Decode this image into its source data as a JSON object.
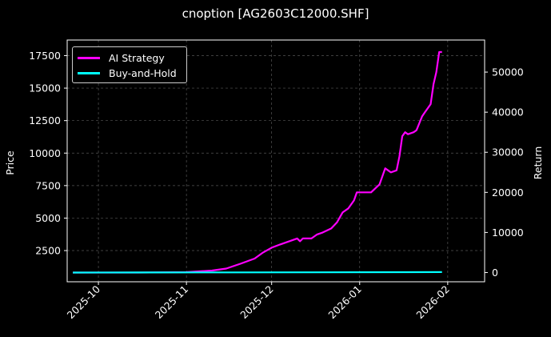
{
  "chart_data": {
    "type": "line",
    "title": "cnoption [AG2603C12000.SHF]",
    "ylabel_left": "Price",
    "ylabel_right": "Return",
    "ylim_left": [
      100,
      18700
    ],
    "ylim_right": [
      -2300,
      58000
    ],
    "xlim": [
      "2025-09-20",
      "2026-02-14"
    ],
    "x_ticks": [
      "2025-10",
      "2025-11",
      "2025-12",
      "2026-01",
      "2026-02"
    ],
    "y_ticks_left": [
      2500,
      5000,
      7500,
      10000,
      12500,
      15000,
      17500
    ],
    "y_ticks_right": [
      0,
      10000,
      20000,
      30000,
      40000,
      50000
    ],
    "grid": true,
    "legend_position": "top-left",
    "series": [
      {
        "name": "AI Strategy",
        "axis": "right",
        "color": "#ff00ff",
        "x": [
          "2025-09-22",
          "2025-10-01",
          "2025-10-15",
          "2025-11-01",
          "2025-11-10",
          "2025-11-15",
          "2025-11-20",
          "2025-11-25",
          "2025-11-28",
          "2025-12-01",
          "2025-12-04",
          "2025-12-08",
          "2025-12-10",
          "2025-12-11",
          "2025-12-12",
          "2025-12-15",
          "2025-12-17",
          "2025-12-19",
          "2025-12-22",
          "2025-12-24",
          "2025-12-26",
          "2025-12-28",
          "2025-12-30",
          "2025-12-31",
          "2026-01-02",
          "2026-01-05",
          "2026-01-08",
          "2026-01-10",
          "2026-01-12",
          "2026-01-14",
          "2026-01-15",
          "2026-01-16",
          "2026-01-17",
          "2026-01-18",
          "2026-01-20",
          "2026-01-21",
          "2026-01-23",
          "2026-01-24",
          "2026-01-26",
          "2026-01-27",
          "2026-01-28",
          "2026-01-29",
          "2026-01-30"
        ],
        "y": [
          0,
          0,
          0,
          100,
          500,
          1000,
          2200,
          3500,
          5000,
          6200,
          7000,
          8000,
          8500,
          7800,
          8500,
          8500,
          9500,
          10000,
          11000,
          12500,
          15000,
          16000,
          18000,
          20000,
          20000,
          20000,
          22000,
          26000,
          25000,
          25500,
          29000,
          34000,
          35000,
          34500,
          35000,
          35500,
          39000,
          40000,
          42000,
          47000,
          50000,
          55000,
          55000
        ]
      },
      {
        "name": "Buy-and-Hold",
        "axis": "right",
        "color": "#00ffff",
        "x": [
          "2025-09-22",
          "2025-10-15",
          "2025-11-15",
          "2025-12-15",
          "2026-01-15",
          "2026-01-30"
        ],
        "y": [
          0,
          20,
          40,
          60,
          90,
          120
        ]
      }
    ]
  }
}
